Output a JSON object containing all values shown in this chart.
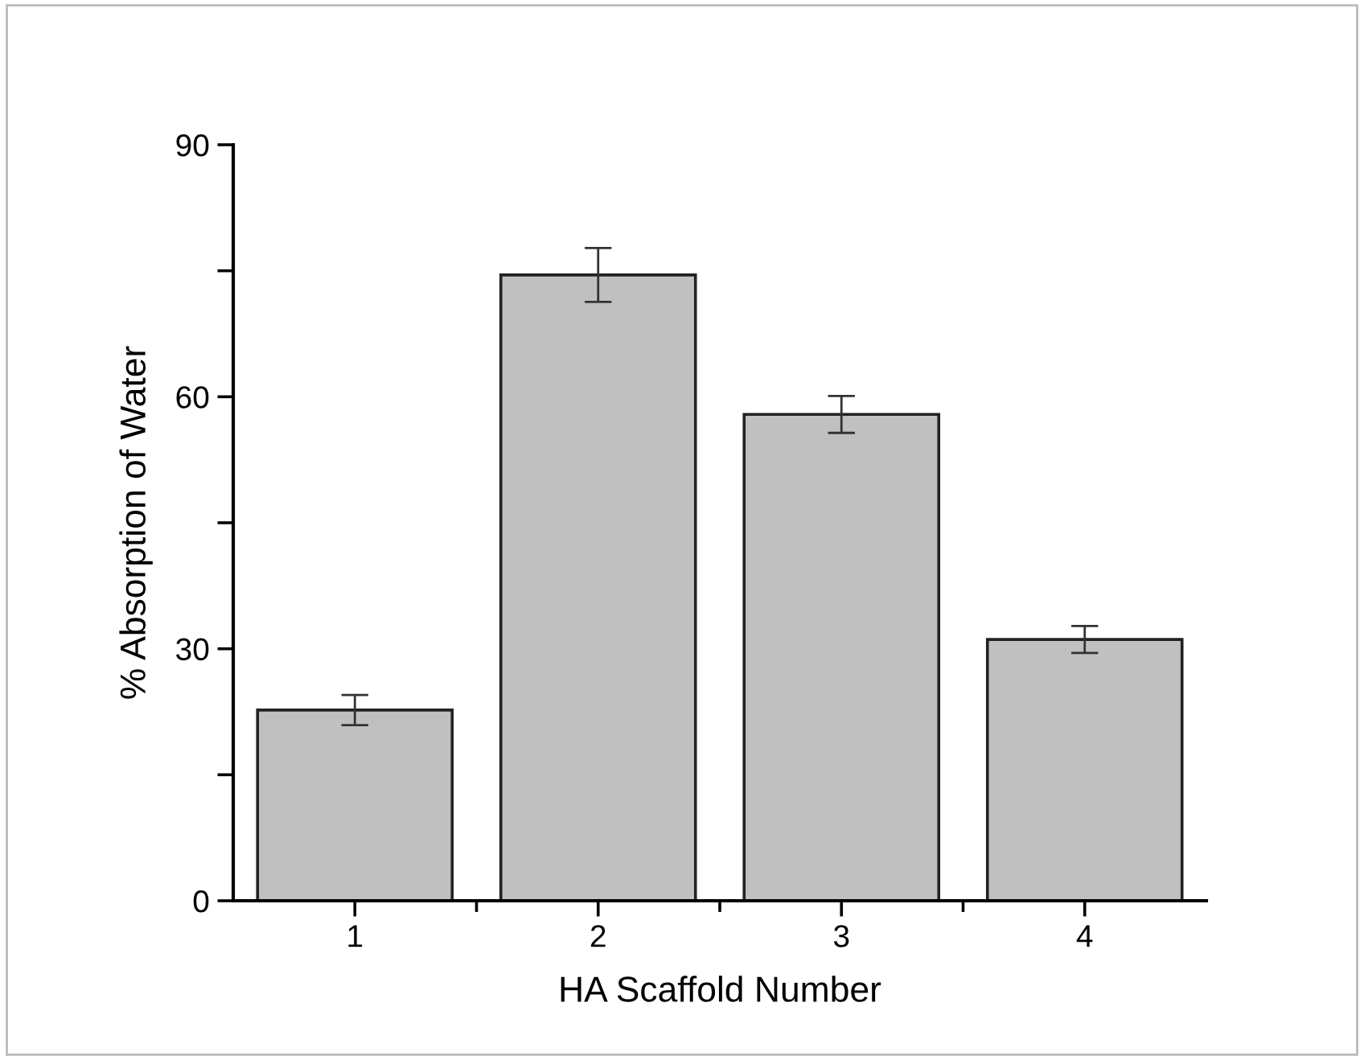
{
  "chart_data": {
    "type": "bar",
    "xlabel": "HA Scaffold Number",
    "ylabel": "% Absorption of Water",
    "categories": [
      "1",
      "2",
      "3",
      "4"
    ],
    "values": [
      22.7,
      74.5,
      57.9,
      31.1
    ],
    "errors": [
      1.8,
      3.2,
      2.2,
      1.6
    ],
    "color": "#c0c0c0",
    "ylim": [
      0,
      90
    ],
    "yticks": [
      0,
      {
        "value": 15,
        "label": null
      },
      30,
      {
        "value": 45,
        "label": null
      },
      60,
      {
        "value": 75,
        "label": null
      },
      90
    ],
    "grid": false
  }
}
